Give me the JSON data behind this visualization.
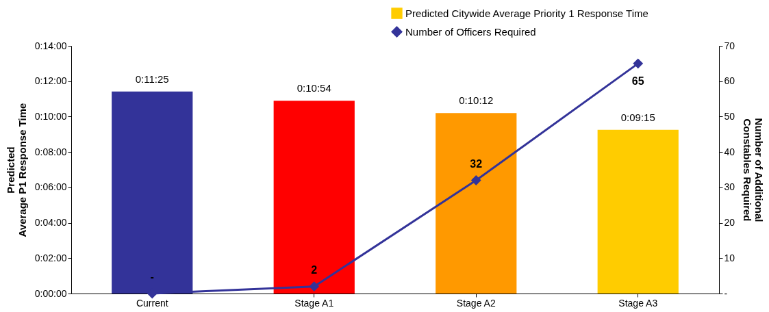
{
  "chart_data": {
    "type": "bar",
    "categories": [
      "Current",
      "Stage A1",
      "Stage A2",
      "Stage A3"
    ],
    "ylabel": "Predicted\nAverage P1 Response Time",
    "y2label": "Number of Additional\nConstables Required",
    "ylim": [
      0,
      840
    ],
    "yticks": [
      {
        "value": 0,
        "label": "0:00:00"
      },
      {
        "value": 120,
        "label": "0:02:00"
      },
      {
        "value": 240,
        "label": "0:04:00"
      },
      {
        "value": 360,
        "label": "0:06:00"
      },
      {
        "value": 480,
        "label": "0:08:00"
      },
      {
        "value": 600,
        "label": "0:10:00"
      },
      {
        "value": 720,
        "label": "0:12:00"
      },
      {
        "value": 840,
        "label": "0:14:00"
      }
    ],
    "y2lim": [
      0,
      70
    ],
    "y2ticks": [
      {
        "value": 0,
        "label": "-"
      },
      10,
      20,
      30,
      40,
      50,
      60,
      70
    ],
    "legend": "top right",
    "grid": false,
    "series": [
      {
        "name": "Predicted Citywide Average Priority 1 Response Time",
        "color": "#ffcc00",
        "colors": [
          "#333399",
          "#ff0000",
          "#ff9900",
          "#ffcc00"
        ],
        "values": [
          685,
          654,
          612,
          555
        ],
        "value_labels": [
          "0:11:25",
          "0:10:54",
          "0:10:12",
          "0:09:15"
        ]
      },
      {
        "name": "Number of Officers Required",
        "type": "line",
        "axis": "y2",
        "color": "#333399",
        "marker": "diamond",
        "values": [
          0,
          2,
          32,
          65
        ],
        "value_labels": [
          "-",
          "2",
          "32",
          "65"
        ]
      }
    ]
  }
}
